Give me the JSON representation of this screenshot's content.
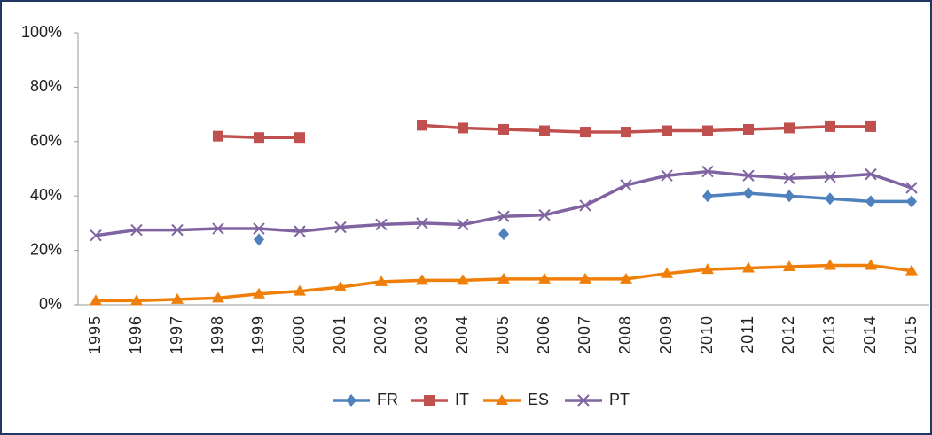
{
  "chart_data": {
    "type": "line",
    "categories": [
      "1995",
      "1996",
      "1997",
      "1998",
      "1999",
      "2000",
      "2001",
      "2002",
      "2003",
      "2004",
      "2005",
      "2006",
      "2007",
      "2008",
      "2009",
      "2010",
      "2011",
      "2012",
      "2013",
      "2014",
      "2015"
    ],
    "series": [
      {
        "name": "FR",
        "color": "#4f81bd",
        "marker": "diamond",
        "values": [
          null,
          null,
          null,
          null,
          24,
          null,
          null,
          null,
          null,
          null,
          26,
          null,
          null,
          null,
          null,
          40,
          41,
          40,
          39,
          38,
          38
        ]
      },
      {
        "name": "IT",
        "color": "#c0504d",
        "marker": "square",
        "values": [
          null,
          null,
          null,
          62,
          61.5,
          61.5,
          null,
          null,
          66,
          65,
          64.5,
          64,
          63.5,
          63.5,
          64,
          64,
          64.5,
          65,
          65.5,
          65.5,
          null
        ]
      },
      {
        "name": "ES",
        "color": "#f07f09",
        "marker": "triangle",
        "values": [
          1.5,
          1.5,
          2,
          2.5,
          4,
          5,
          6.5,
          8.5,
          9,
          9,
          9.5,
          9.5,
          9.5,
          9.5,
          11.5,
          13,
          13.5,
          14,
          14.5,
          14.5,
          12.5
        ]
      },
      {
        "name": "PT",
        "color": "#8064a2",
        "marker": "x",
        "values": [
          25.5,
          27.5,
          27.5,
          28,
          28,
          27,
          28.5,
          29.5,
          30,
          29.5,
          32.5,
          33,
          36.5,
          44,
          47.5,
          49,
          47.5,
          46.5,
          47,
          48,
          43
        ]
      }
    ],
    "ylim": [
      0,
      100
    ],
    "yticks": [
      {
        "value": 0,
        "label": "0%"
      },
      {
        "value": 20,
        "label": "20%"
      },
      {
        "value": 40,
        "label": "40%"
      },
      {
        "value": 60,
        "label": "60%"
      },
      {
        "value": 80,
        "label": "80%"
      },
      {
        "value": 100,
        "label": "100%"
      }
    ],
    "grid": false,
    "legend": "bottom"
  }
}
